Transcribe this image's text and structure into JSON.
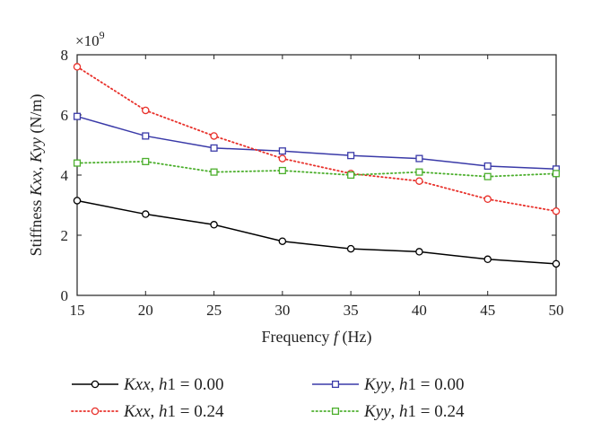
{
  "chart_data": {
    "type": "line",
    "title": "",
    "xlabel": "Frequency f (Hz)",
    "ylabel": "Stiffness Kxx, Kyy (N/m)",
    "y_multiplier": "×10^9",
    "x": [
      15,
      20,
      25,
      30,
      35,
      40,
      45,
      50
    ],
    "xlim": [
      15,
      50
    ],
    "ylim": [
      0,
      8
    ],
    "x_ticks": [
      15,
      20,
      25,
      30,
      35,
      40,
      45,
      50
    ],
    "y_ticks": [
      0,
      2,
      4,
      6,
      8
    ],
    "grid": false,
    "legend_position": "bottom",
    "series": [
      {
        "name": "Kxx, h1 = 0.00",
        "values": [
          3.15,
          2.7,
          2.35,
          1.8,
          1.55,
          1.45,
          1.2,
          1.05
        ],
        "color": "#000000",
        "line": "solid",
        "marker": "circle"
      },
      {
        "name": "Kyy, h1 = 0.00",
        "values": [
          5.95,
          5.3,
          4.9,
          4.8,
          4.65,
          4.55,
          4.3,
          4.2
        ],
        "color": "#3a3aa8",
        "line": "solid",
        "marker": "square"
      },
      {
        "name": "Kxx, h1 = 0.24",
        "values": [
          7.6,
          6.15,
          5.3,
          4.55,
          4.05,
          3.8,
          3.2,
          2.8
        ],
        "color": "#e8302a",
        "line": "dotted",
        "marker": "circle"
      },
      {
        "name": "Kyy, h1 = 0.24",
        "values": [
          4.4,
          4.45,
          4.1,
          4.15,
          4.0,
          4.1,
          3.95,
          4.05
        ],
        "color": "#4caf2d",
        "line": "dotted",
        "marker": "square"
      }
    ]
  }
}
